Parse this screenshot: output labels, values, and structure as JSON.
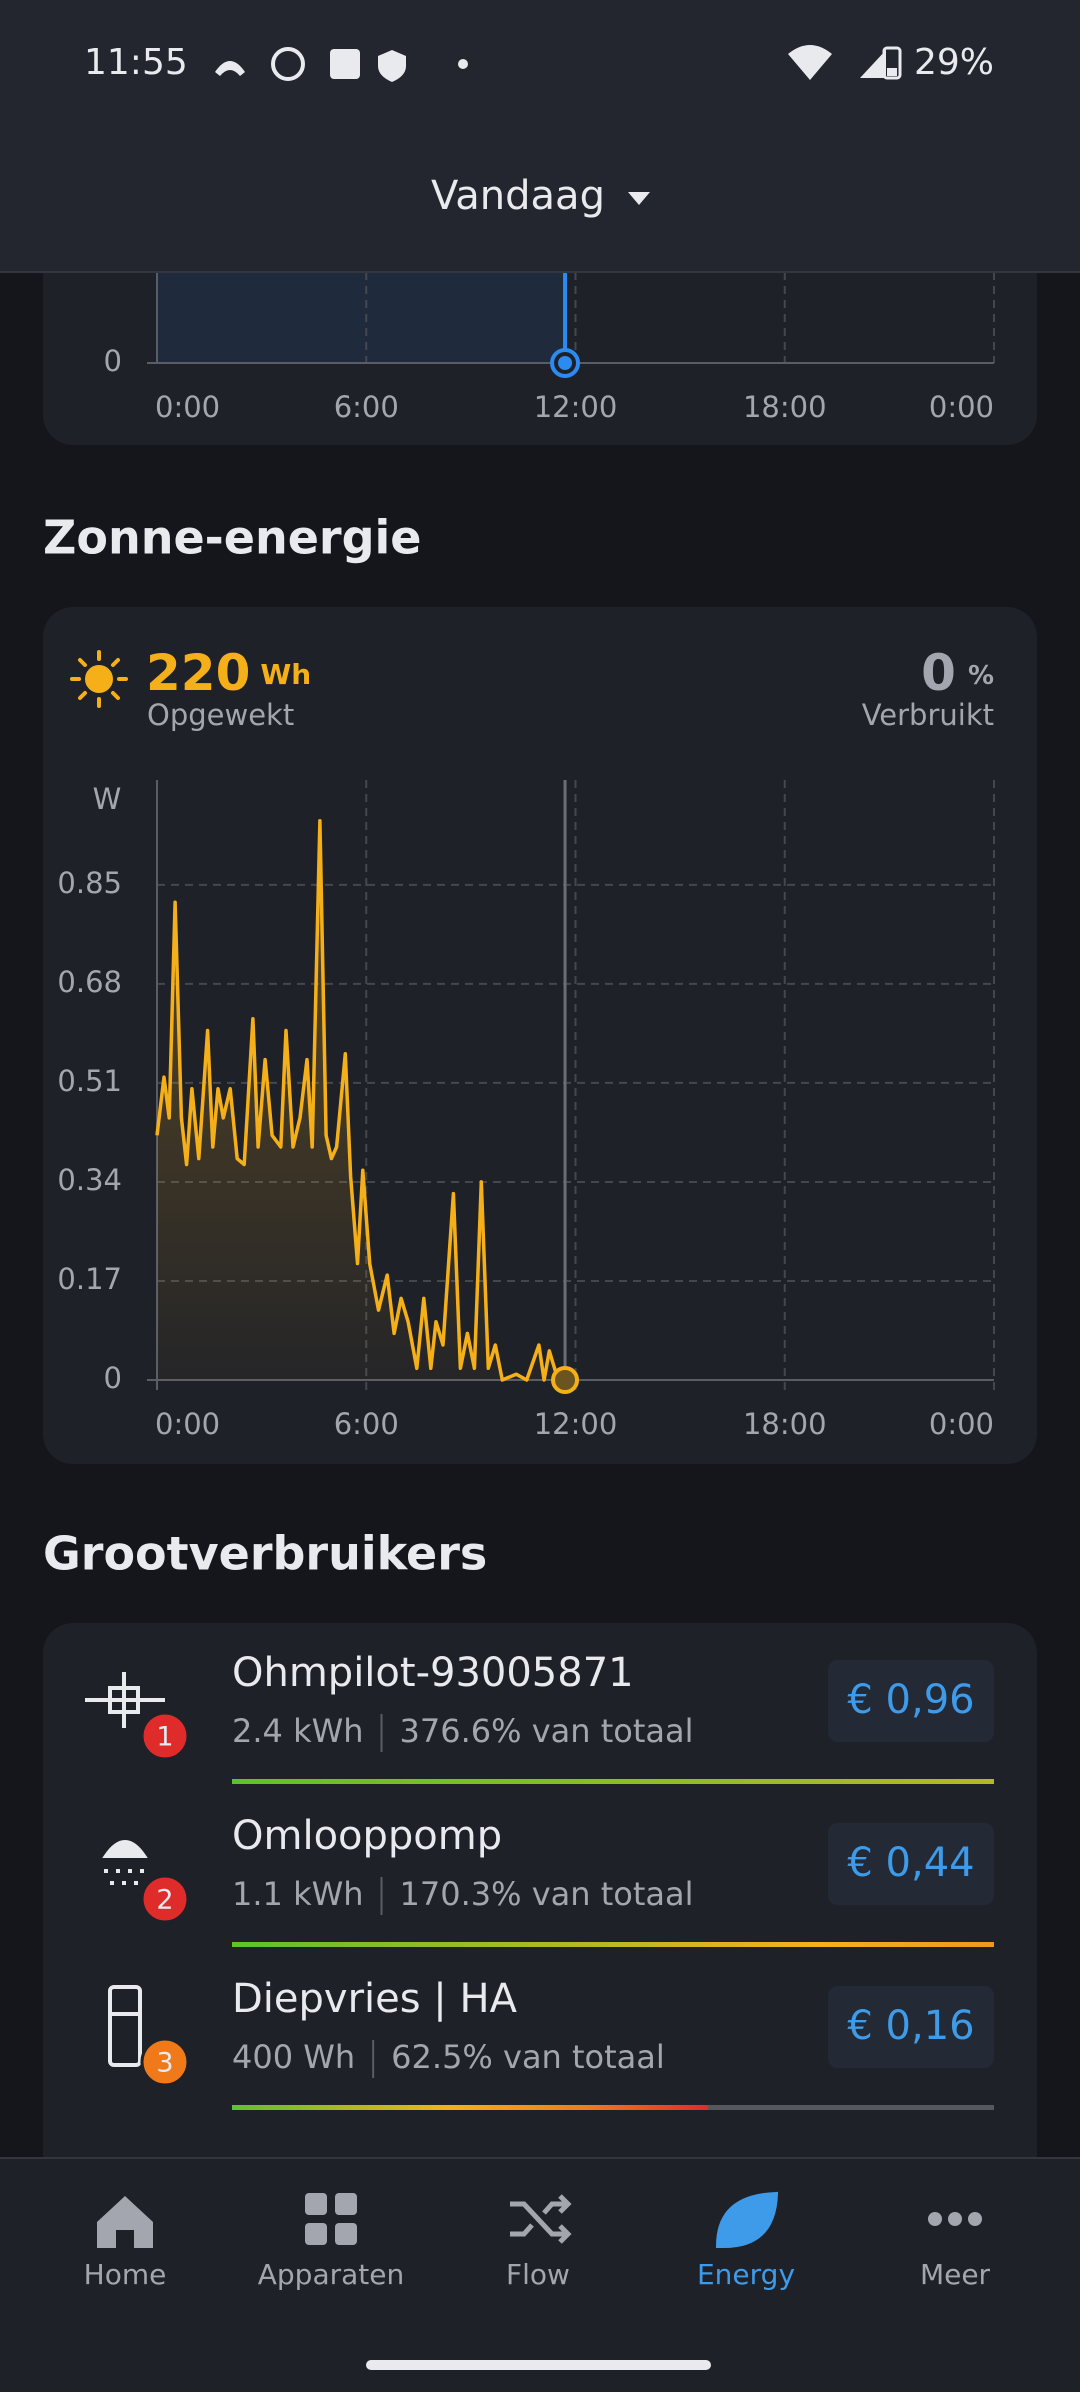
{
  "status_bar": {
    "time": "11:55",
    "battery": "29%"
  },
  "header": {
    "title": "Vandaag"
  },
  "usage_chart": {
    "chart_data": {
      "type": "line",
      "xlim": [
        0,
        24
      ],
      "yticks": [
        0
      ],
      "xticks": [
        {
          "value": 0,
          "label": "0:00"
        },
        {
          "value": 6,
          "label": "6:00"
        },
        {
          "value": 12,
          "label": "12:00"
        },
        {
          "value": 18,
          "label": "18:00"
        },
        {
          "value": 24,
          "label": "0:00"
        }
      ],
      "grid": true
    }
  },
  "solar": {
    "title": "Zonne-energie",
    "generated": {
      "value": "220",
      "unit": "Wh",
      "label": "Opgewekt"
    },
    "consumed": {
      "value": "0",
      "unit": "%",
      "label": "Verbruikt"
    },
    "chart_data": {
      "type": "line",
      "y_label": "W",
      "x": [
        0,
        0.2,
        0.35,
        0.52,
        0.7,
        0.85,
        1.0,
        1.2,
        1.45,
        1.6,
        1.75,
        1.9,
        2.1,
        2.3,
        2.5,
        2.75,
        2.9,
        3.1,
        3.3,
        3.55,
        3.7,
        3.9,
        4.1,
        4.3,
        4.45,
        4.67,
        4.85,
        5.0,
        5.15,
        5.4,
        5.55,
        5.75,
        5.9,
        6.1,
        6.35,
        6.6,
        6.8,
        7.0,
        7.2,
        7.45,
        7.65,
        7.85,
        8.0,
        8.2,
        8.5,
        8.7,
        8.9,
        9.1,
        9.3,
        9.5,
        9.7,
        9.9,
        10.3,
        10.6,
        10.95,
        11.1,
        11.25,
        11.5,
        11.7
      ],
      "series": [
        {
          "color": "#f5b019",
          "values": [
            0.42,
            0.52,
            0.45,
            0.82,
            0.45,
            0.37,
            0.5,
            0.38,
            0.6,
            0.4,
            0.5,
            0.45,
            0.5,
            0.38,
            0.37,
            0.62,
            0.4,
            0.55,
            0.42,
            0.4,
            0.6,
            0.4,
            0.45,
            0.55,
            0.4,
            0.96,
            0.42,
            0.38,
            0.4,
            0.56,
            0.35,
            0.2,
            0.36,
            0.2,
            0.12,
            0.18,
            0.08,
            0.14,
            0.1,
            0.02,
            0.14,
            0.02,
            0.1,
            0.06,
            0.32,
            0.02,
            0.08,
            0.02,
            0.34,
            0.02,
            0.06,
            0,
            0.01,
            0,
            0.06,
            0,
            0.05,
            0,
            0
          ]
        }
      ],
      "xlim": [
        0,
        24
      ],
      "ylim": [
        0,
        1.03
      ],
      "xticks": [
        {
          "value": 0,
          "label": "0:00"
        },
        {
          "value": 6,
          "label": "6:00"
        },
        {
          "value": 12,
          "label": "12:00"
        },
        {
          "value": 18,
          "label": "18:00"
        },
        {
          "value": 24,
          "label": "0:00"
        }
      ],
      "yticks": [
        0,
        0.17,
        0.34,
        0.51,
        0.68,
        0.85
      ],
      "grid": true
    }
  },
  "consumers": {
    "title": "Grootverbruikers",
    "items": [
      {
        "name": "Ohmpilot-93005871",
        "energy": "2.4 kWh",
        "share": 376.6,
        "share_label": "376.6% van totaal",
        "cost": "€ 0,96",
        "rank": "1"
      },
      {
        "name": "Omlooppomp",
        "energy": "1.1 kWh",
        "share": 170.3,
        "share_label": "170.3% van totaal",
        "cost": "€ 0,44",
        "rank": "2"
      },
      {
        "name": "Diepvries | HA",
        "energy": "400 Wh",
        "share": 62.5,
        "share_label": "62.5% van totaal",
        "cost": "€ 0,16",
        "rank": "3"
      }
    ]
  },
  "nav": {
    "items": [
      "Home",
      "Apparaten",
      "Flow",
      "Energy",
      "Meer"
    ],
    "active": "Energy"
  }
}
